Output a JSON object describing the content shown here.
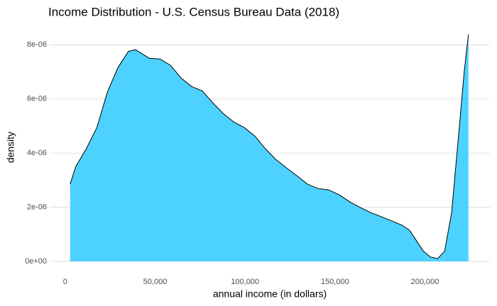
{
  "chart_data": {
    "type": "area",
    "title": "Income Distribution - U.S. Census Bureau Data (2018)",
    "x_label": "annual income (in dollars)",
    "y_label": "density",
    "color": "#4dd2ff",
    "line_color": "#000000",
    "grid": "y",
    "x": [
      2734,
      5860,
      11719,
      17578,
      23438,
      29297,
      35156,
      39063,
      42969,
      46875,
      52734,
      58594,
      64453,
      70313,
      76172,
      82031,
      87891,
      93750,
      99609,
      105469,
      111328,
      117188,
      123047,
      128906,
      134766,
      140625,
      146484,
      152344,
      158203,
      164063,
      169922,
      175781,
      181641,
      187500,
      191406,
      195313,
      199219,
      203125,
      207031,
      210938,
      214844,
      218750,
      221875,
      224219
    ],
    "values": [
      2.85e-06,
      3.5e-06,
      4.16e-06,
      4.94e-06,
      6.25e-06,
      7.16e-06,
      7.76e-06,
      7.82e-06,
      7.66e-06,
      7.5e-06,
      7.48e-06,
      7.24e-06,
      6.77e-06,
      6.46e-06,
      6.3e-06,
      5.86e-06,
      5.46e-06,
      5.15e-06,
      4.94e-06,
      4.63e-06,
      4.16e-06,
      3.76e-06,
      3.45e-06,
      3.16e-06,
      2.85e-06,
      2.69e-06,
      2.64e-06,
      2.46e-06,
      2.2e-06,
      1.99e-06,
      1.8e-06,
      1.65e-06,
      1.49e-06,
      1.33e-06,
      1.15e-06,
      7.6e-07,
      3.7e-07,
      1.6e-07,
      1e-07,
      3.7e-07,
      1.8e-06,
      4.68e-06,
      7.03e-06,
      8.39e-06
    ],
    "xlim": [
      -8625,
      236125
    ],
    "ylim": [
      -4.2e-07,
      8.82e-06
    ],
    "xticks": [
      0,
      {
        "value": 50000,
        "label": "50,000"
      },
      {
        "value": 100000,
        "label": "100,000"
      },
      {
        "value": 150000,
        "label": "150,000"
      },
      {
        "value": 200000,
        "label": "200,000"
      }
    ],
    "yticks": [
      {
        "value": 0,
        "label": "0e+00"
      },
      {
        "value": 2e-06,
        "label": "2e-06"
      },
      {
        "value": 4e-06,
        "label": "4e-06"
      },
      {
        "value": 6e-06,
        "label": "6e-06"
      },
      {
        "value": 8e-06,
        "label": "8e-06"
      }
    ]
  }
}
